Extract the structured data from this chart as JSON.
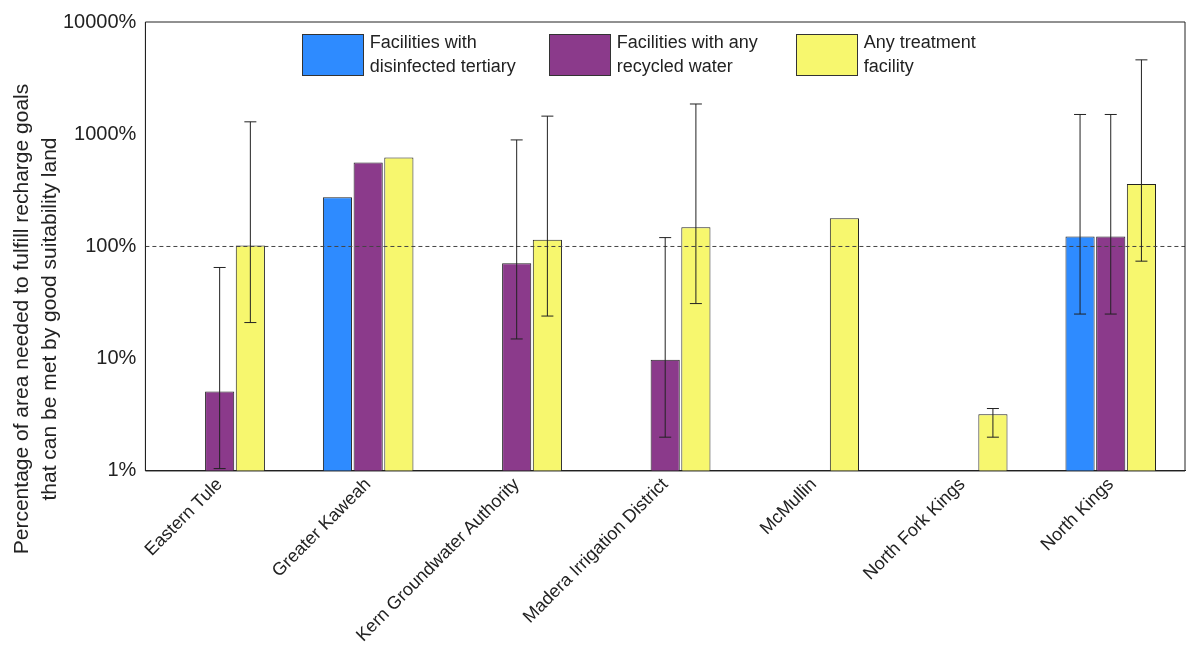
{
  "chart_data": {
    "type": "bar",
    "ylabel": "Percentage of area needed to fulfill recharge goals that can be met by good suitability land",
    "categories": [
      "Eastern Tule",
      "Greater Kaweah",
      "Kern Groundwater Authority",
      "Madera Irrigation District",
      "McMullin",
      "North Fork Kings",
      "North Kings"
    ],
    "series": [
      {
        "name": "Facilities with disinfected tertiary",
        "color": "#2e8bff",
        "values": [
          null,
          275,
          null,
          null,
          null,
          null,
          123
        ],
        "errors": [
          null,
          null,
          null,
          null,
          null,
          null,
          [
            25,
            1500
          ]
        ]
      },
      {
        "name": "Facilities with any recycled water",
        "color": "#8b3a8b",
        "values": [
          5.1,
          560,
          71,
          9.8,
          null,
          null,
          123
        ],
        "errors": [
          [
            1.05,
            65
          ],
          null,
          [
            15,
            890
          ],
          [
            2,
            120
          ],
          null,
          null,
          [
            25,
            1500
          ]
        ]
      },
      {
        "name": "Any treatment facility",
        "color": "#f7f76e",
        "values": [
          102,
          620,
          115,
          148,
          178,
          3.2,
          360
        ],
        "errors": [
          [
            21,
            1290
          ],
          null,
          [
            24,
            1450
          ],
          [
            31,
            1860
          ],
          null,
          [
            2,
            3.6
          ],
          [
            74,
            4600
          ]
        ]
      }
    ],
    "log": "y",
    "ylim": [
      1,
      10000
    ],
    "yticks": [
      {
        "value": 1,
        "label": "1%"
      },
      {
        "value": 10,
        "label": "10%"
      },
      {
        "value": 100,
        "label": "100%"
      },
      {
        "value": 1000,
        "label": "1000%"
      },
      {
        "value": 10000,
        "label": "10000%"
      }
    ],
    "ref_lines": [
      {
        "axis": "y",
        "value": 100,
        "line_style": "dashed"
      }
    ],
    "grid": false,
    "legend": "top"
  }
}
